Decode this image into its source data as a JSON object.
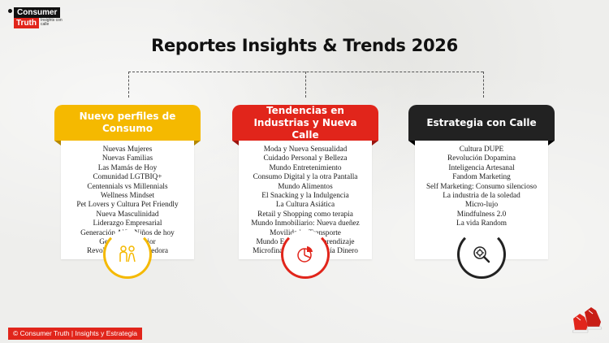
{
  "logo": {
    "line1": "Consumer",
    "line2": "Truth",
    "tagline": "Insights con calle"
  },
  "title": "Reportes Insights & Trends 2026",
  "colors": {
    "yellow": "#f5b900",
    "red": "#e1251b",
    "dark": "#222222"
  },
  "cards": [
    {
      "header": "Nuevo perfiles de Consumo",
      "icon": "people-icon",
      "items": [
        "Nuevas Mujeres",
        "Nuevas Familias",
        "Las Mamás de Hoy",
        "Comunidad LGTBIQ+",
        "Centennials vs Millennials",
        "Wellness Mindset",
        "Pet Lovers y Cultura Pet Friendly",
        "Nueva Masculinidad",
        "Liderazgo Empresarial",
        "Generación Alfa: Niños de hoy",
        "Generación Senior",
        "Revolución Emprendedora"
      ]
    },
    {
      "header": "Tendencias en Industrias y Nueva Calle",
      "icon": "pie-chart-icon",
      "items": [
        "Moda y Nueva Sensualidad",
        "Cuidado Personal y Belleza",
        "Mundo Entretenimiento",
        "Consumo Digital y la otra Pantalla",
        "Mundo Alimentos",
        "El Snacking y la Indulgencia",
        "La Cultura Asiática",
        "Retail y Shopping como terapia",
        "Mundo Inmobiliario: Nueva dueñez",
        "Movilidad y Transporte",
        "Mundo Educativo y Aprendizaje",
        "Microfinanzas y Psicología Dinero"
      ]
    },
    {
      "header": "Estrategia con Calle",
      "icon": "search-gear-icon",
      "items": [
        "Cultura DUPE",
        "Revolución Dopamina",
        "Inteligencia Artesanal",
        "Fandom Marketing",
        "Self Marketing: Consumo silencioso",
        "La industria de la soledad",
        "Micro-lujo",
        "Mindfulness 2.0",
        "La vida Random"
      ]
    }
  ],
  "footer": "© Consumer Truth | Insights y Estrategia"
}
